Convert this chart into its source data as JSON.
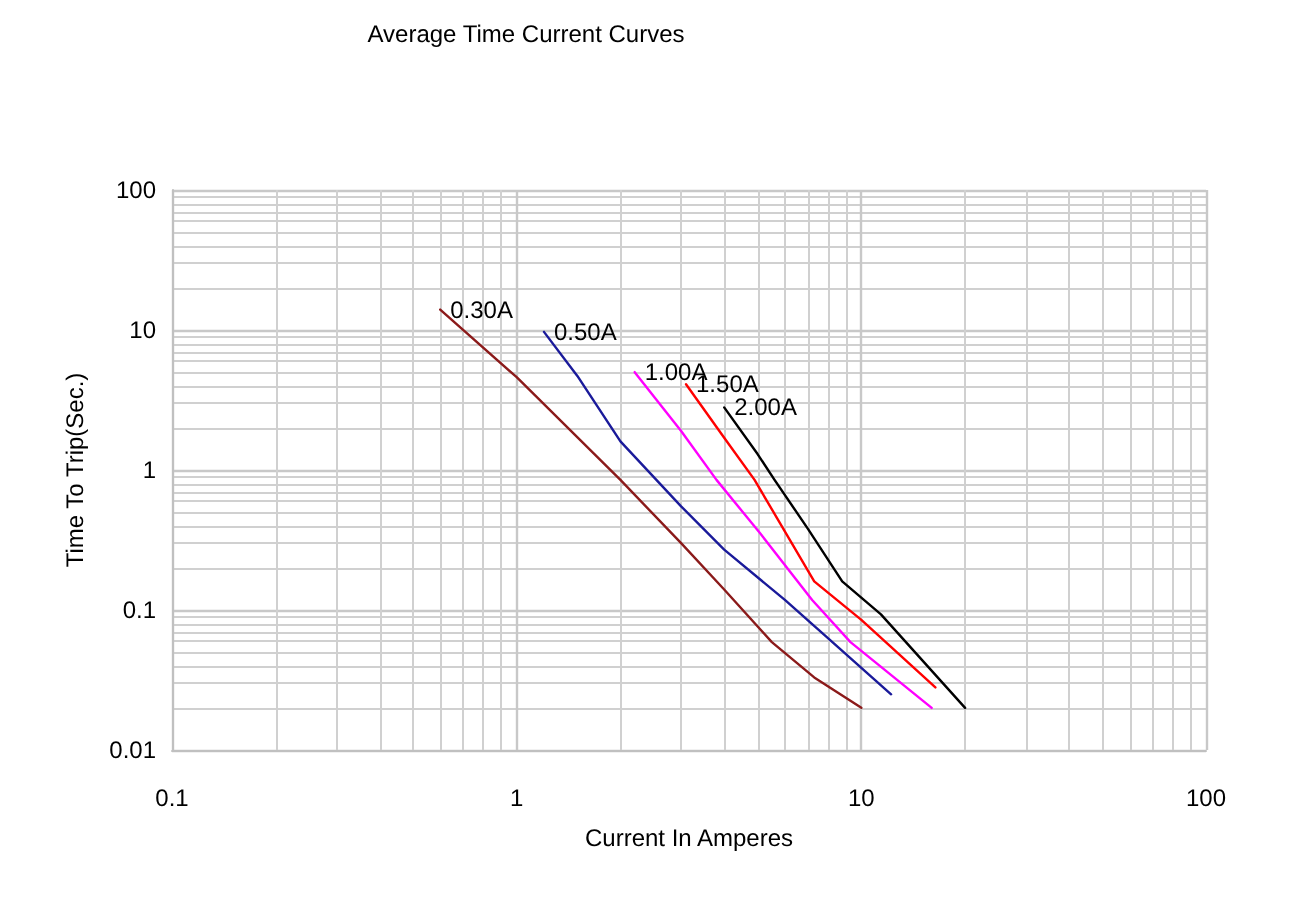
{
  "chart_data": {
    "type": "line",
    "title": "Average Time Current Curves",
    "xlabel": "Current In Amperes",
    "ylabel": "Time To Trip(Sec.)",
    "log": "xy",
    "grid": true,
    "legend": false,
    "marker": "none",
    "line_style": "solid",
    "xlim": [
      0.1,
      100
    ],
    "xticks": [
      0.1,
      1,
      10,
      100
    ],
    "ylim": [
      0.01,
      100
    ],
    "yticks": [
      0.01,
      0.1,
      1,
      10,
      100
    ],
    "series": [
      {
        "name": "0.30A",
        "color": "#8b1a1a",
        "x": [
          0.6,
          1,
          2,
          3,
          4,
          5.5,
          7.3,
          10
        ],
        "values": [
          14,
          4.6,
          0.85,
          0.3,
          0.14,
          0.059,
          0.033,
          0.02
        ]
      },
      {
        "name": "0.50A",
        "color": "#1a1a9a",
        "x": [
          1.2,
          1.5,
          2,
          3,
          4,
          6,
          8,
          12.2
        ],
        "values": [
          9.7,
          4.7,
          1.6,
          0.55,
          0.27,
          0.118,
          0.063,
          0.025
        ]
      },
      {
        "name": "1.00A",
        "color": "#ff00ff",
        "x": [
          2.2,
          3,
          3.8,
          5.1,
          7.2,
          9.3,
          16
        ],
        "values": [
          5,
          1.9,
          0.85,
          0.35,
          0.118,
          0.059,
          0.02
        ]
      },
      {
        "name": "1.50A",
        "color": "#ff0000",
        "x": [
          3.1,
          4,
          4.9,
          7.3,
          10,
          16.4
        ],
        "values": [
          4.1,
          1.7,
          0.85,
          0.16,
          0.085,
          0.028
        ]
      },
      {
        "name": "2.00A",
        "color": "#000000",
        "x": [
          4,
          5,
          5.6,
          7,
          8.8,
          11.4,
          20
        ],
        "values": [
          2.8,
          1.3,
          0.85,
          0.38,
          0.16,
          0.093,
          0.02
        ]
      }
    ]
  }
}
